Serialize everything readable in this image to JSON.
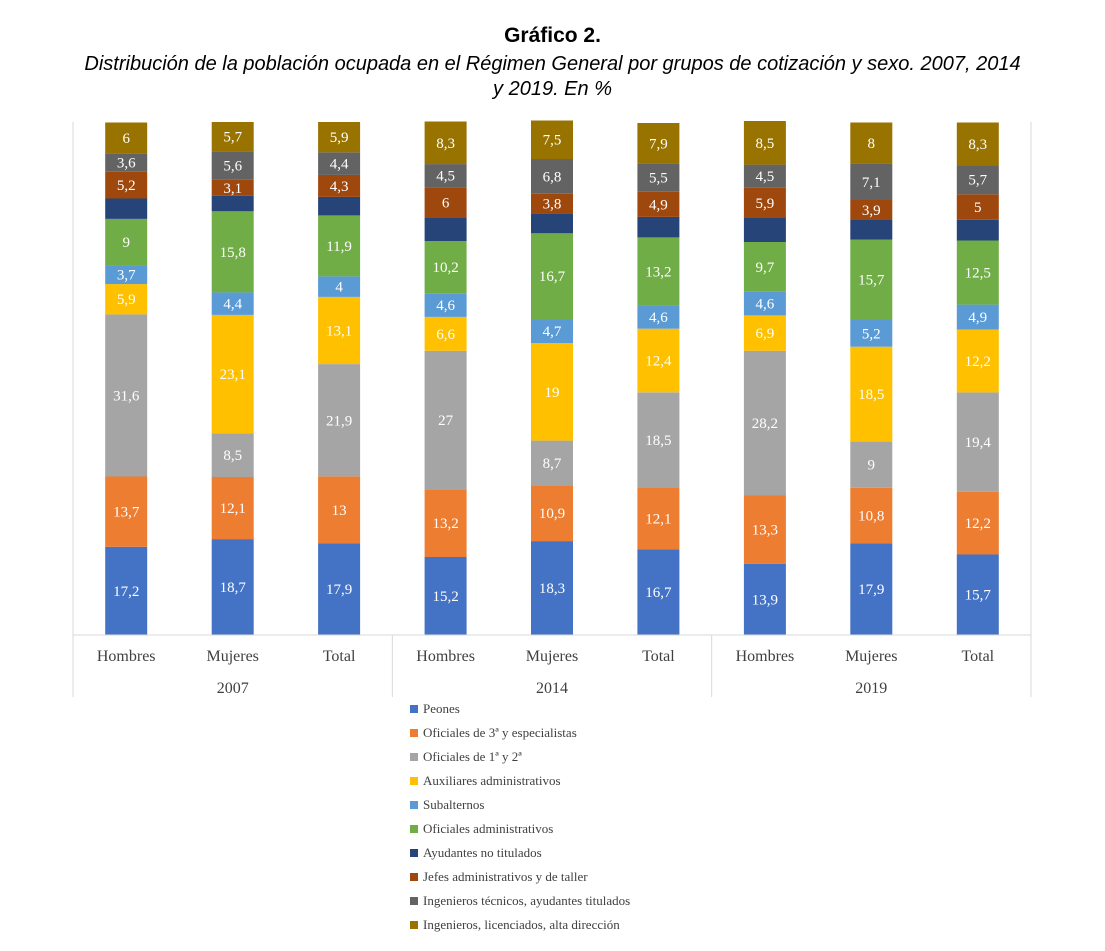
{
  "title": "Gráfico 2.",
  "subtitle_line1": "Distribución de la población ocupada en el Régimen General por grupos de cotización y sexo. 2007, 2014",
  "subtitle_line2": "y 2019. En %",
  "chart_data": {
    "type": "bar",
    "stacked": true,
    "categories": [
      "Hombres",
      "Mujeres",
      "Total",
      "Hombres",
      "Mujeres",
      "Total",
      "Hombres",
      "Mujeres",
      "Total"
    ],
    "groups": [
      {
        "label": "2007",
        "start": 0,
        "count": 3
      },
      {
        "label": "2014",
        "start": 3,
        "count": 3
      },
      {
        "label": "2019",
        "start": 6,
        "count": 3
      }
    ],
    "ylim": [
      0,
      100
    ],
    "grid": false,
    "legend_position": "bottom",
    "series": [
      {
        "name": "Peones",
        "color": "#4472C4",
        "label_color": "#ffffff",
        "values": [
          17.2,
          18.7,
          17.9,
          15.2,
          18.3,
          16.7,
          13.9,
          17.9,
          15.7
        ],
        "labels": [
          "17,2",
          "18,7",
          "17,9",
          "15,2",
          "18,3",
          "16,7",
          "13,9",
          "17,9",
          "15,7"
        ]
      },
      {
        "name": "Oficiales de 3ª y especialistas",
        "color": "#ED7D31",
        "label_color": "#ffffff",
        "values": [
          13.7,
          12.1,
          13,
          13.2,
          10.9,
          12.1,
          13.3,
          10.8,
          12.2
        ],
        "labels": [
          "13,7",
          "12,1",
          "13",
          "13,2",
          "10,9",
          "12,1",
          "13,3",
          "10,8",
          "12,2"
        ]
      },
      {
        "name": "Oficiales de 1ª y 2ª",
        "color": "#A5A5A5",
        "label_color": "#ffffff",
        "values": [
          31.6,
          8.5,
          21.9,
          27,
          8.7,
          18.5,
          28.2,
          9,
          19.4
        ],
        "labels": [
          "31,6",
          "8,5",
          "21,9",
          "27",
          "8,7",
          "18,5",
          "28,2",
          "9",
          "19,4"
        ]
      },
      {
        "name": "Auxiliares administrativos",
        "color": "#FFC000",
        "label_color": "#ffffff",
        "values": [
          5.9,
          23.1,
          13.1,
          6.6,
          19,
          12.4,
          6.9,
          18.5,
          12.2
        ],
        "labels": [
          "5,9",
          "23,1",
          "13,1",
          "6,6",
          "19",
          "12,4",
          "6,9",
          "18,5",
          "12,2"
        ]
      },
      {
        "name": "Subalternos",
        "color": "#5B9BD5",
        "label_color": "#ffffff",
        "values": [
          3.7,
          4.4,
          4,
          4.6,
          4.7,
          4.6,
          4.6,
          5.2,
          4.9
        ],
        "labels": [
          "3,7",
          "4,4",
          "4",
          "4,6",
          "4,7",
          "4,6",
          "4,6",
          "5,2",
          "4,9"
        ]
      },
      {
        "name": "Oficiales administrativos",
        "color": "#70AD47",
        "label_color": "#ffffff",
        "values": [
          9,
          15.8,
          11.9,
          10.2,
          16.7,
          13.2,
          9.7,
          15.7,
          12.5
        ],
        "labels": [
          "9",
          "15,8",
          "11,9",
          "10,2",
          "16,7",
          "13,2",
          "9,7",
          "15,7",
          "12,5"
        ]
      },
      {
        "name": "Ayudantes no titulados",
        "color": "#264478",
        "label_color": "#ffffff",
        "values": [
          4,
          3,
          3.6,
          4.5,
          3.9,
          4,
          4.7,
          3.8,
          4
        ],
        "labels": [
          "",
          "",
          "",
          "",
          "",
          "",
          "",
          "",
          ""
        ]
      },
      {
        "name": "Jefes administrativos y de taller",
        "color": "#9E480E",
        "label_color": "#ffffff",
        "values": [
          5.2,
          3.1,
          4.3,
          6,
          3.8,
          4.9,
          5.9,
          3.9,
          5
        ],
        "labels": [
          "5,2",
          "3,1",
          "4,3",
          "6",
          "3,8",
          "4,9",
          "5,9",
          "3,9",
          "5"
        ]
      },
      {
        "name": "Ingenieros técnicos, ayudantes titulados",
        "color": "#636363",
        "label_color": "#ffffff",
        "values": [
          3.6,
          5.6,
          4.4,
          4.5,
          6.8,
          5.5,
          4.5,
          7.1,
          5.7
        ],
        "labels": [
          "3,6",
          "5,6",
          "4,4",
          "4,5",
          "6,8",
          "5,5",
          "4,5",
          "7,1",
          "5,7"
        ]
      },
      {
        "name": "Ingenieros, licenciados, alta dirección",
        "color": "#997300",
        "label_color": "#ffffff",
        "values": [
          6,
          5.7,
          5.9,
          8.3,
          7.5,
          7.9,
          8.5,
          8,
          8.3
        ],
        "labels": [
          "6",
          "5,7",
          "5,9",
          "8,3",
          "7,5",
          "7,9",
          "8,5",
          "8",
          "8,3"
        ]
      }
    ]
  }
}
